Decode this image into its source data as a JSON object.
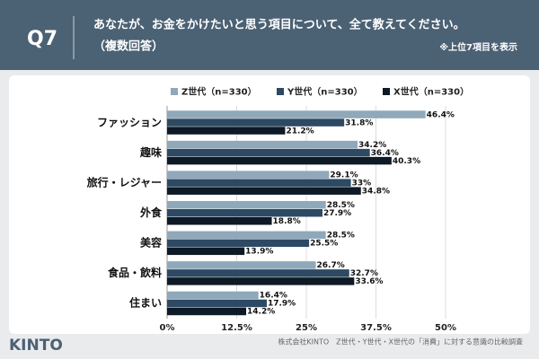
{
  "header": {
    "question_no": "Q7",
    "question": "あなたが、お金をかけたいと思う項目について、全て教えてください。",
    "note": "（複数回答）",
    "sub_note": "※上位7項目を表示"
  },
  "chart_data": {
    "type": "hbar",
    "categories": [
      "ファッション",
      "趣味",
      "旅行・レジャー",
      "外食",
      "美容",
      "食品・飲料",
      "住まい"
    ],
    "series": [
      {
        "name": "Z世代（n=330）",
        "color": "#8fa8ba",
        "values": [
          46.4,
          34.2,
          29.1,
          28.5,
          28.5,
          26.7,
          16.4
        ],
        "value_labels": [
          "46.4%",
          "34.2%",
          "29.1%",
          "28.5%",
          "28.5%",
          "26.7%",
          "16.4%"
        ]
      },
      {
        "name": "Y世代（n=330）",
        "color": "#2d4963",
        "values": [
          31.8,
          36.4,
          33,
          27.9,
          25.5,
          32.7,
          17.9
        ],
        "value_labels": [
          "31.8%",
          "36.4%",
          "33%",
          "27.9%",
          "25.5%",
          "32.7%",
          "17.9%"
        ]
      },
      {
        "name": "X世代（n=330）",
        "color": "#0e1a26",
        "values": [
          21.2,
          40.3,
          34.8,
          18.8,
          13.9,
          33.6,
          14.2
        ],
        "value_labels": [
          "21.2%",
          "40.3%",
          "34.8%",
          "18.8%",
          "13.9%",
          "33.6%",
          "14.2%"
        ]
      }
    ],
    "xlim": [
      0,
      50
    ],
    "xticks": [
      {
        "value": 0,
        "label": "0%"
      },
      {
        "value": 12.5,
        "label": "12.5%"
      },
      {
        "value": 25,
        "label": "25%"
      },
      {
        "value": 37.5,
        "label": "37.5%"
      },
      {
        "value": 50,
        "label": "50%"
      }
    ],
    "grid": true
  },
  "footer": {
    "logo": "KINTO",
    "source": "株式会社KINTO　Z世代・Y世代・X世代の「消費」に対する意識の比較調査"
  }
}
